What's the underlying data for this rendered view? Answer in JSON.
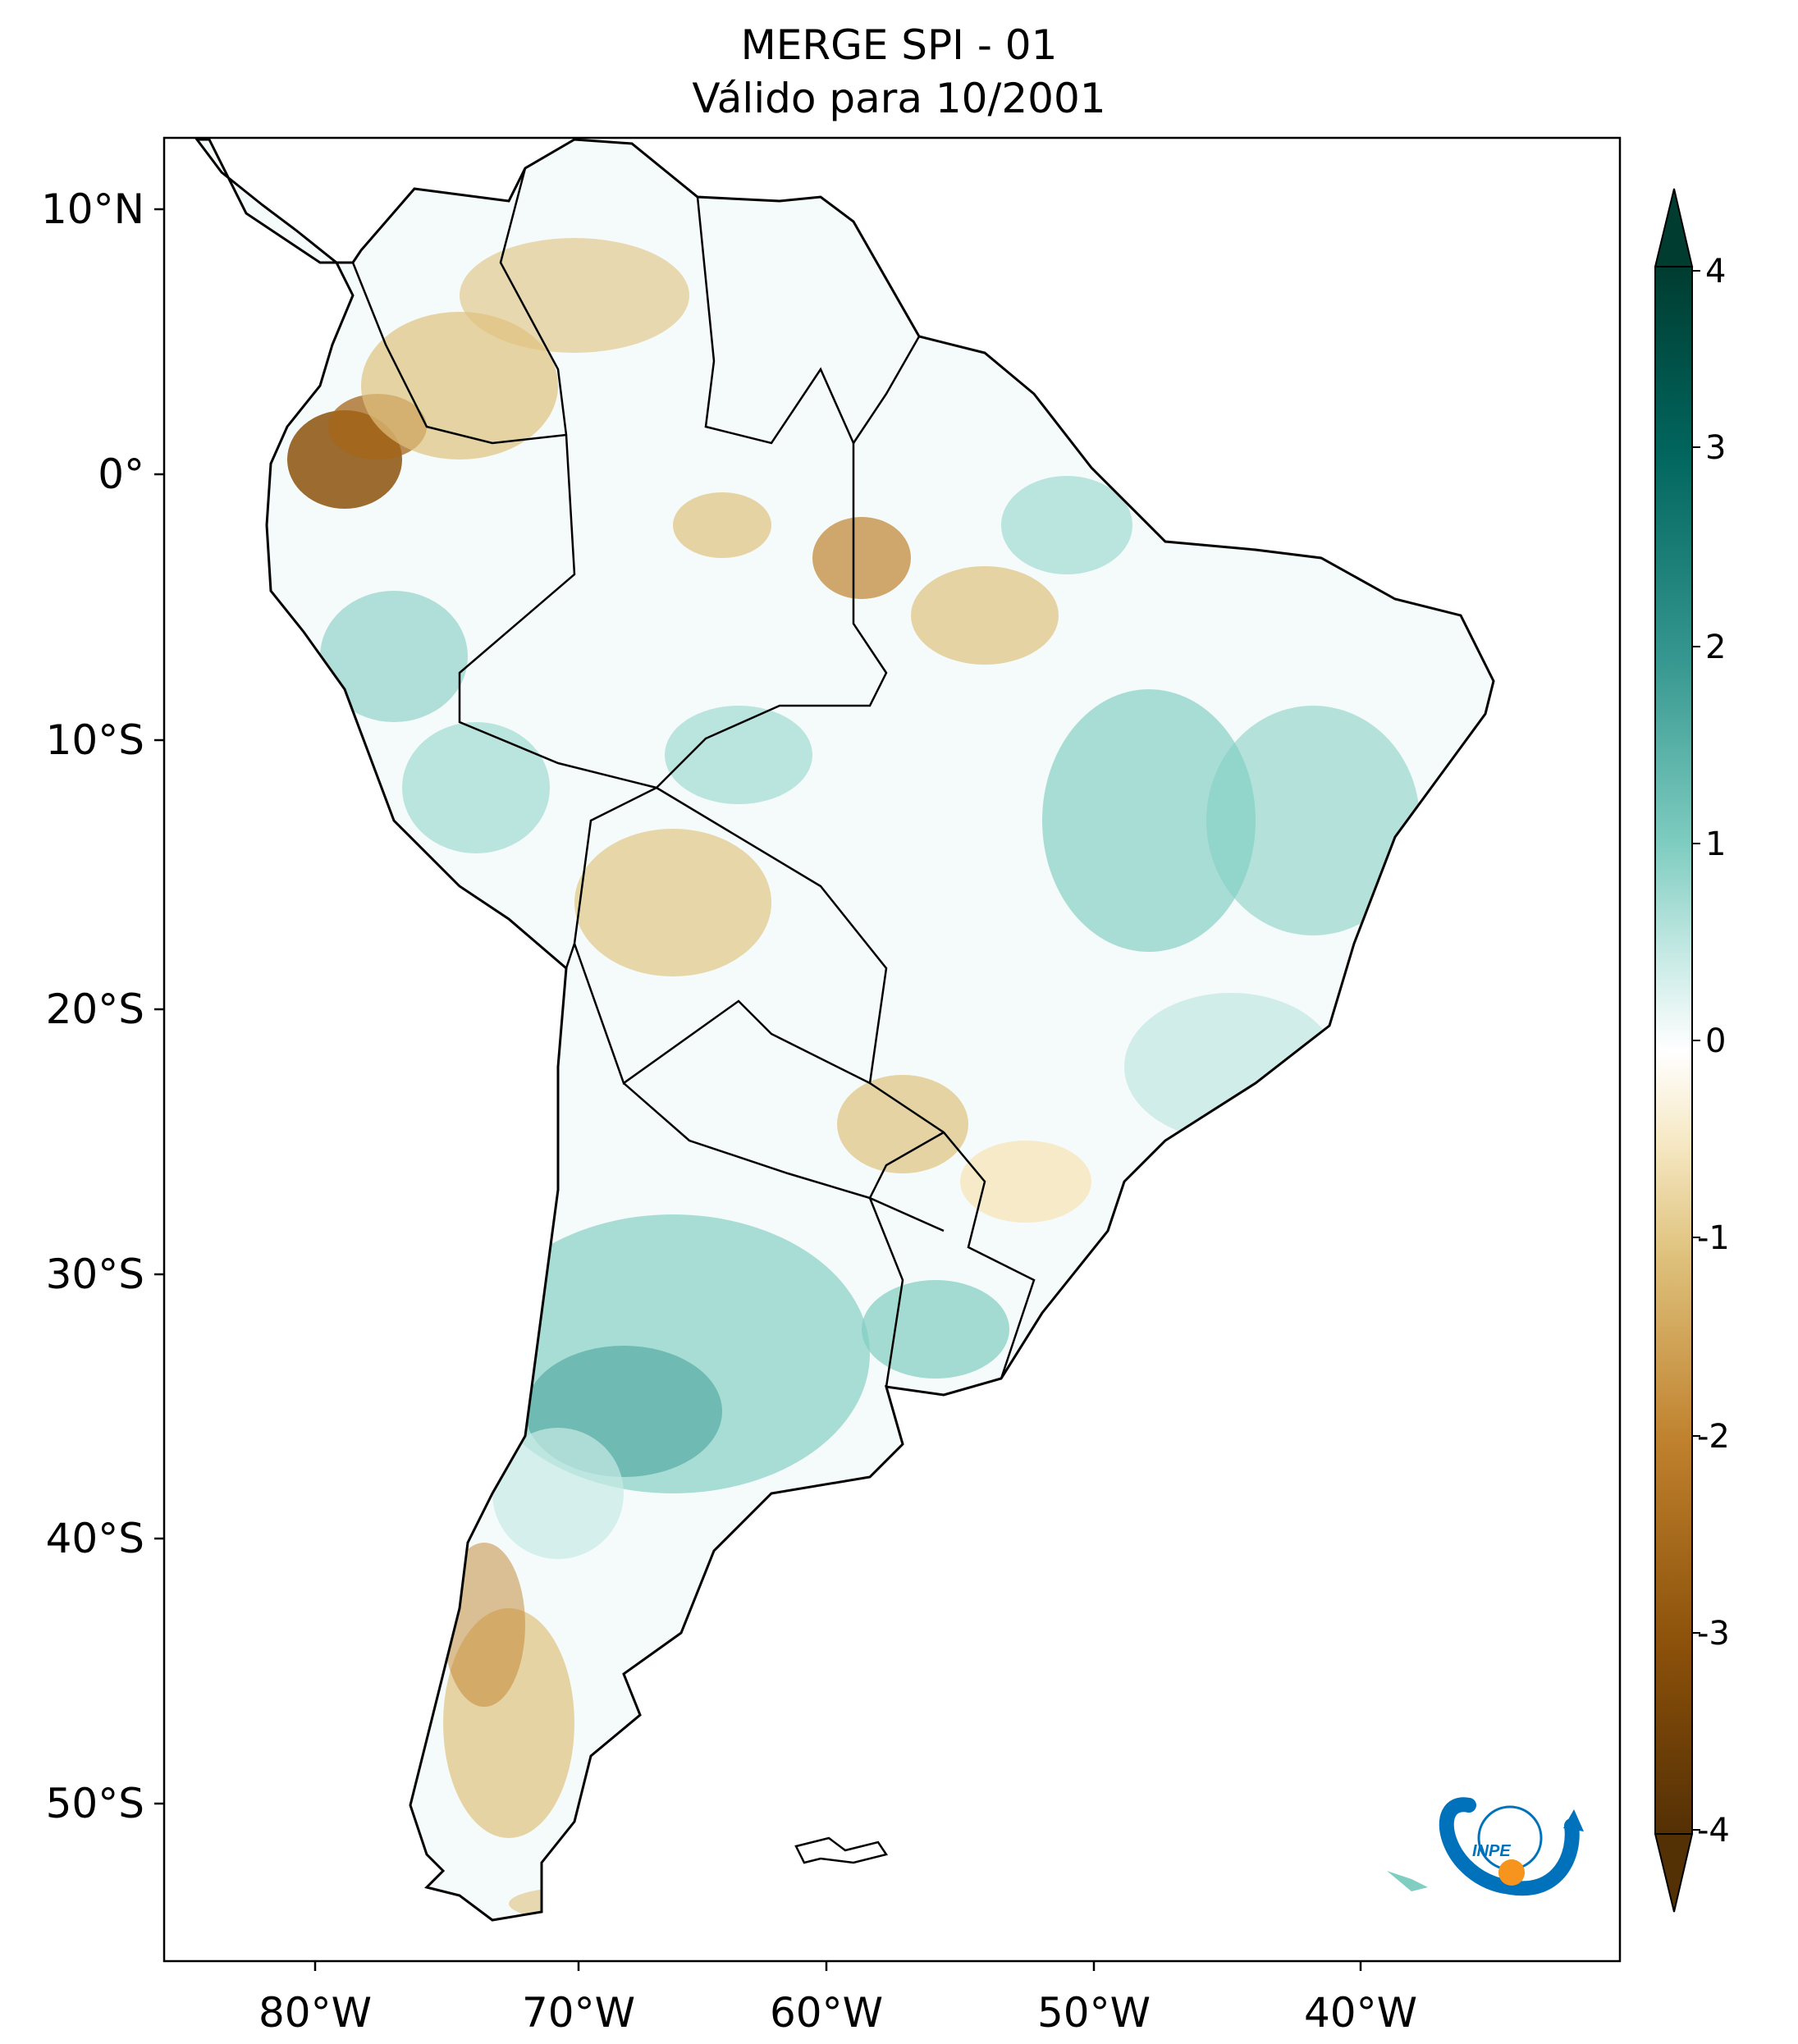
{
  "title": {
    "line1": "MERGE   SPI - 01",
    "line2": "Válido para 10/2001"
  },
  "axes": {
    "lon_ticks": [
      "80°W",
      "70°W",
      "60°W",
      "50°W",
      "40°W"
    ],
    "lat_ticks": [
      "10°N",
      "0°",
      "10°S",
      "20°S",
      "30°S",
      "40°S",
      "50°S"
    ]
  },
  "colorbar": {
    "ticks": [
      "4",
      "3",
      "2",
      "1",
      "0",
      "-1",
      "-2",
      "-3",
      "-4"
    ],
    "colors": [
      "#543005",
      "#8c510a",
      "#bf812d",
      "#dfc27d",
      "#f6e8c3",
      "#ffffff",
      "#c7eae5",
      "#80cdc1",
      "#35978f",
      "#01665e",
      "#003c30"
    ],
    "extend": "both"
  },
  "logo": {
    "text": "INPE"
  },
  "colors": {
    "frame": "#000000",
    "land_outline": "#000000",
    "orange": "#f7941d",
    "blue": "#0072bc"
  }
}
